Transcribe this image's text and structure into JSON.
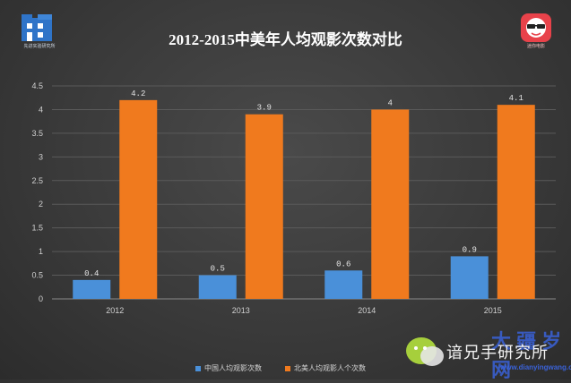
{
  "header": {
    "left_logo_caption": "先进实验研究所",
    "right_logo_caption": "迷你电影"
  },
  "watermark": {
    "account_name": "谙兄手研究所",
    "brand": "大 疆 岁 网",
    "url": "www.dianyingwang.com"
  },
  "colors": {
    "china": "#4a90d9",
    "north_america": "#f07a1e",
    "axis_text": "#d0d0d0",
    "grid": "#5a5a5a"
  },
  "chart_data": {
    "type": "bar",
    "title": "2012-2015中美年人均观影次数对比",
    "categories": [
      "2012",
      "2013",
      "2014",
      "2015"
    ],
    "series": [
      {
        "name": "中国人均观影次数",
        "values": [
          0.4,
          0.5,
          0.6,
          0.9
        ],
        "labels": [
          "0.4",
          "0.5",
          "0.6",
          "0.9"
        ]
      },
      {
        "name": "北美人均观影人个次数",
        "values": [
          4.2,
          3.9,
          4,
          4.1
        ],
        "labels": [
          "4.2",
          "3.9",
          "4",
          "4.1"
        ]
      }
    ],
    "ylim": [
      0,
      4.5
    ],
    "yticks": [
      "0",
      "0.5",
      "1",
      "1.5",
      "2",
      "2.5",
      "3",
      "3.5",
      "4",
      "4.5"
    ],
    "xlabel": "",
    "ylabel": "",
    "grid": true,
    "legend": "bottom"
  }
}
